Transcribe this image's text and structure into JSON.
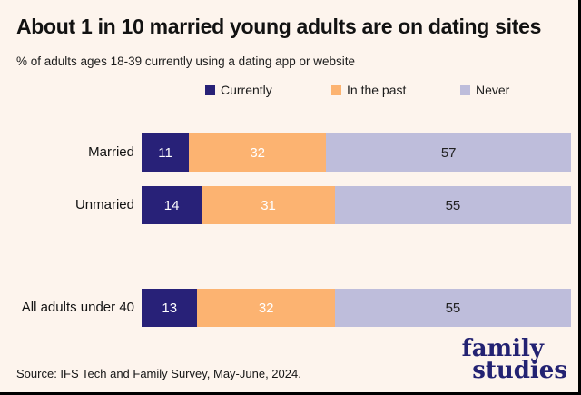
{
  "title": "About 1 in 10 married young adults are on dating sites",
  "subtitle": "% of adults ages 18-39 currently using a dating app or website",
  "legend": [
    {
      "label": "Currently",
      "color": "#282178"
    },
    {
      "label": "In the past",
      "color": "#FCB371"
    },
    {
      "label": "Never",
      "color": "#BEBDDB"
    }
  ],
  "chart_data": {
    "type": "bar",
    "orientation": "horizontal",
    "stacked": true,
    "title": "About 1 in 10 married young adults are on dating sites",
    "subtitle": "% of adults ages 18-39 currently using a dating app or website",
    "categories": [
      "Married",
      "Unmaried",
      "All adults under 40"
    ],
    "series": [
      {
        "name": "Currently",
        "color": "#282178",
        "values": [
          11,
          14,
          13
        ]
      },
      {
        "name": "In the past",
        "color": "#FCB371",
        "values": [
          32,
          31,
          32
        ]
      },
      {
        "name": "Never",
        "color": "#BEBDDB",
        "values": [
          57,
          55,
          55
        ]
      }
    ],
    "xlim": [
      0,
      100
    ],
    "grid": false,
    "value_labels": true,
    "legend_position": "top"
  },
  "source": "Source: IFS Tech and Family Survey, May-June, 2024.",
  "logo": {
    "line1": "family",
    "line2": "studies",
    "color": "#232272"
  },
  "colors": {
    "background": "#FDF4ED",
    "currently": "#282178",
    "in_the_past": "#FCB371",
    "never": "#BEBDDB",
    "text": "#121212",
    "logo": "#232272",
    "edge_border": "#000000"
  }
}
